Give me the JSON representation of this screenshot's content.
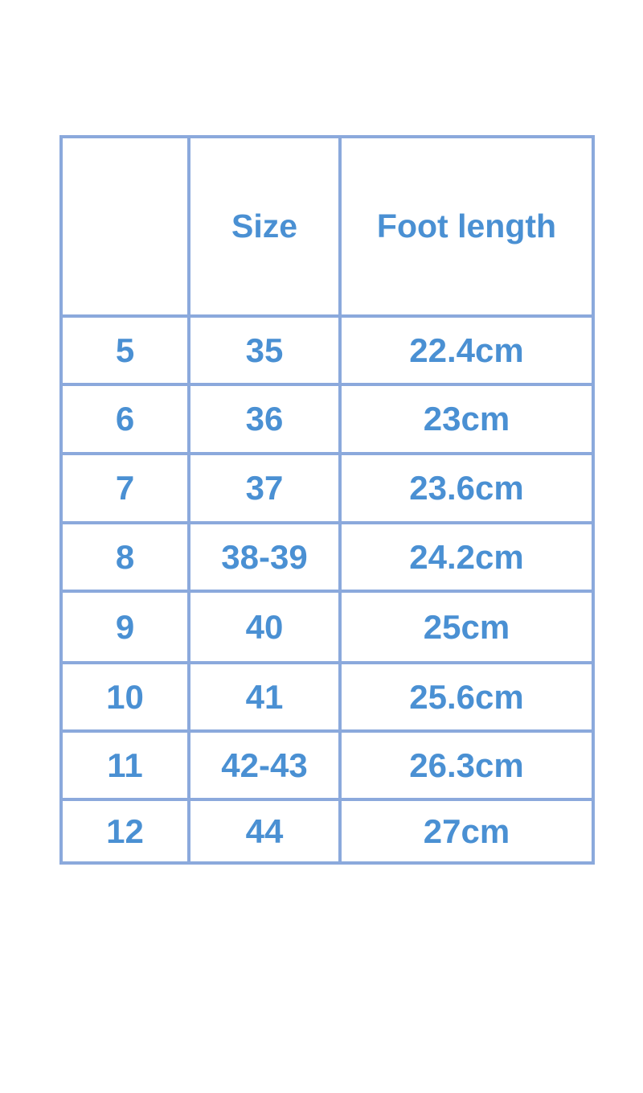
{
  "table": {
    "headers": [
      "",
      "Size",
      "Foot length"
    ],
    "rows": [
      [
        "5",
        "35",
        "22.4cm"
      ],
      [
        "6",
        "36",
        "23cm"
      ],
      [
        "7",
        "37",
        "23.6cm"
      ],
      [
        "8",
        "38-39",
        "24.2cm"
      ],
      [
        "9",
        "40",
        "25cm"
      ],
      [
        "10",
        "41",
        "25.6cm"
      ],
      [
        "11",
        "42-43",
        "26.3cm"
      ],
      [
        "12",
        "44",
        "27cm"
      ]
    ]
  },
  "colors": {
    "border": "#8ba9dc",
    "text": "#4a90d3"
  }
}
